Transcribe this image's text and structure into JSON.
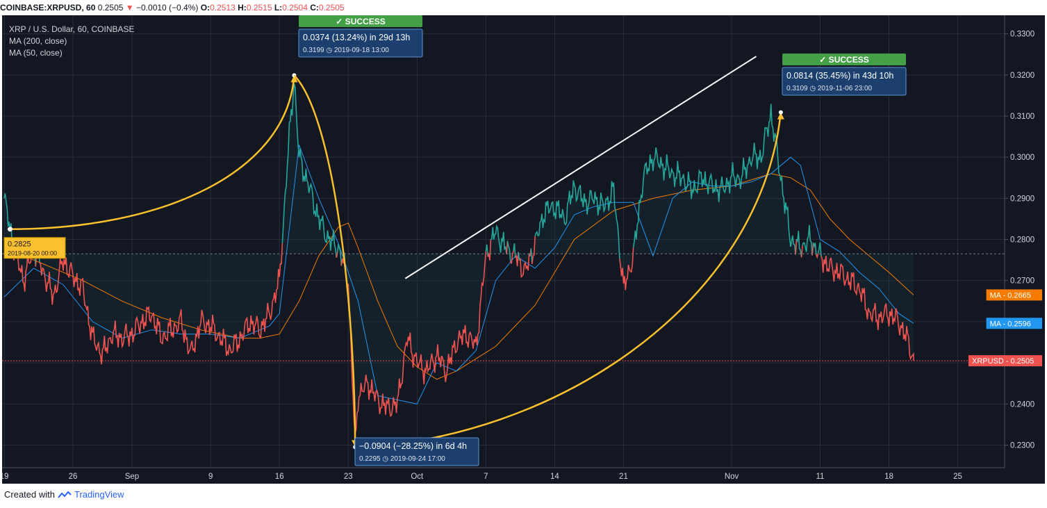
{
  "header": {
    "symbol": "COINBASE:XRPUSD, 60",
    "last": "0.2505",
    "change_arrow": "▼",
    "change": "−0.0010 (−0.4%)",
    "o_label": "O:",
    "o": "0.2513",
    "h_label": "H:",
    "h": "0.2515",
    "l_label": "L:",
    "l": "0.2504",
    "c_label": "C:",
    "c": "0.2505"
  },
  "legend": {
    "title": "XRP / U.S. Dollar, 60, COINBASE",
    "ma200": "MA (200, close)",
    "ma50": "MA (50, close)"
  },
  "footer": {
    "created_with": "Created with",
    "brand": "TradingView"
  },
  "colors": {
    "background": "#131722",
    "up": "#26a69a",
    "down": "#ef5350",
    "ma200": "#f57c00",
    "ma50": "#2196f3",
    "arc": "#fbc02d",
    "trendline": "#ffffff",
    "success": "#43a047",
    "callout": "#1c3f6e"
  },
  "chart_data": {
    "type": "line",
    "symbol": "XRPUSD",
    "ylim": [
      0.2245,
      0.3345
    ],
    "y_ticks": [
      "0.2300",
      "0.2400",
      "0.2500",
      "0.2600",
      "0.2700",
      "0.2800",
      "0.2900",
      "0.3000",
      "0.3100",
      "0.3200",
      "0.3300"
    ],
    "x_ticks": [
      "19",
      "26",
      "Sep",
      "9",
      "16",
      "23",
      "Oct",
      "7",
      "14",
      "21",
      "Nov",
      "11",
      "18",
      "25"
    ],
    "x_tick_days": [
      0,
      7,
      13,
      21,
      28,
      35,
      42,
      49,
      56,
      63,
      74,
      83,
      90,
      97
    ],
    "reference_price": 0.2765,
    "price": {
      "day": [
        0,
        1,
        2,
        3,
        4,
        5,
        6,
        7,
        8,
        9,
        10,
        11,
        12,
        13,
        14,
        15,
        16,
        17,
        18,
        19,
        20,
        21,
        22,
        23,
        24,
        25,
        26,
        27,
        28,
        29,
        29.5,
        30,
        31,
        32,
        33,
        34,
        35,
        35.7,
        36,
        37,
        38,
        39,
        40,
        41,
        42,
        43,
        44,
        45,
        46,
        47,
        48,
        49,
        50,
        51,
        52,
        53,
        54,
        55,
        56,
        57,
        58,
        59,
        60,
        61,
        62,
        63,
        64,
        65,
        66,
        67,
        68,
        69,
        70,
        71,
        72,
        73,
        74,
        75,
        76,
        77,
        78,
        79,
        80,
        81,
        82,
        83,
        84,
        85,
        86,
        87,
        88,
        89,
        90,
        91,
        92,
        92.5
      ],
      "value": [
        0.29,
        0.278,
        0.27,
        0.278,
        0.272,
        0.266,
        0.275,
        0.271,
        0.268,
        0.256,
        0.252,
        0.257,
        0.256,
        0.257,
        0.26,
        0.262,
        0.256,
        0.258,
        0.26,
        0.252,
        0.26,
        0.259,
        0.256,
        0.253,
        0.256,
        0.26,
        0.258,
        0.262,
        0.27,
        0.305,
        0.319,
        0.3,
        0.293,
        0.285,
        0.28,
        0.278,
        0.27,
        0.2295,
        0.242,
        0.245,
        0.241,
        0.239,
        0.24,
        0.256,
        0.25,
        0.248,
        0.252,
        0.248,
        0.255,
        0.257,
        0.254,
        0.276,
        0.282,
        0.278,
        0.276,
        0.272,
        0.279,
        0.287,
        0.288,
        0.285,
        0.293,
        0.289,
        0.29,
        0.288,
        0.292,
        0.268,
        0.276,
        0.295,
        0.3,
        0.298,
        0.296,
        0.295,
        0.292,
        0.295,
        0.293,
        0.292,
        0.295,
        0.295,
        0.3,
        0.3,
        0.3109,
        0.295,
        0.28,
        0.278,
        0.28,
        0.276,
        0.273,
        0.272,
        0.27,
        0.268,
        0.262,
        0.261,
        0.262,
        0.26,
        0.255,
        0.2505
      ]
    },
    "ma50": {
      "day": [
        0,
        3,
        6,
        9,
        12,
        15,
        18,
        21,
        24,
        27,
        28,
        30,
        32,
        34,
        36,
        38,
        40,
        42,
        44,
        46,
        48,
        50,
        52,
        54,
        56,
        58,
        60,
        62,
        64,
        66,
        68,
        70,
        72,
        74,
        76,
        78,
        80,
        81,
        83,
        85,
        87,
        89,
        91,
        92.5
      ],
      "value": [
        0.266,
        0.273,
        0.269,
        0.26,
        0.256,
        0.258,
        0.257,
        0.257,
        0.256,
        0.259,
        0.262,
        0.303,
        0.29,
        0.279,
        0.265,
        0.242,
        0.241,
        0.24,
        0.25,
        0.248,
        0.253,
        0.27,
        0.276,
        0.273,
        0.278,
        0.286,
        0.288,
        0.289,
        0.289,
        0.276,
        0.29,
        0.294,
        0.293,
        0.293,
        0.294,
        0.296,
        0.3,
        0.298,
        0.28,
        0.277,
        0.272,
        0.268,
        0.262,
        0.2596
      ]
    },
    "ma200": {
      "day": [
        0,
        4,
        8,
        12,
        16,
        20,
        24,
        26,
        28,
        30,
        32,
        34,
        35,
        36,
        38,
        40,
        42,
        44,
        46,
        48,
        50,
        54,
        58,
        62,
        66,
        70,
        74,
        78,
        80,
        82,
        84,
        86,
        88,
        90,
        92.5
      ],
      "value": [
        0.278,
        0.274,
        0.27,
        0.265,
        0.261,
        0.258,
        0.256,
        0.256,
        0.257,
        0.265,
        0.276,
        0.283,
        0.284,
        0.278,
        0.265,
        0.254,
        0.249,
        0.246,
        0.248,
        0.251,
        0.254,
        0.264,
        0.28,
        0.287,
        0.29,
        0.292,
        0.293,
        0.296,
        0.295,
        0.292,
        0.285,
        0.28,
        0.276,
        0.272,
        0.2665
      ]
    },
    "labels": {
      "ma200": {
        "tag": "MA",
        "value": "0.2665"
      },
      "ma50": {
        "tag": "MA",
        "value": "0.2596"
      },
      "price": {
        "tag": "XRPUSD",
        "value": "0.2505"
      }
    },
    "measurements": [
      {
        "from_day": 0.6,
        "from_price": 0.2825,
        "to_day": 29.5,
        "to_price": 0.3199,
        "badge": "✓ SUCCESS",
        "main": "0.0374 (13.24%) in 29d 13h",
        "sub_price": "0.3199",
        "sub_date": "2019-09-18  13:00"
      },
      {
        "from_day": 29.5,
        "from_price": 0.3199,
        "to_day": 35.7,
        "to_price": 0.2295,
        "badge": "",
        "main": "−0.0904 (−28.25%) in 6d 4h",
        "sub_price": "0.2295",
        "sub_date": "2019-09-24  17:00"
      },
      {
        "from_day": 35.7,
        "from_price": 0.2295,
        "to_day": 79.0,
        "to_price": 0.3109,
        "badge": "✓ SUCCESS",
        "main": "0.0814 (35.45%) in 43d 10h",
        "sub_price": "0.3109",
        "sub_date": "2019-11-06  23:00"
      }
    ],
    "start_point": {
      "day": 0.6,
      "price": 0.2825,
      "value": "0.2825",
      "date": "2019-08-20 00:00"
    },
    "trendline": {
      "from_day": 40.8,
      "from_price": 0.2705,
      "to_day": 76.5,
      "to_price": 0.3245
    }
  }
}
